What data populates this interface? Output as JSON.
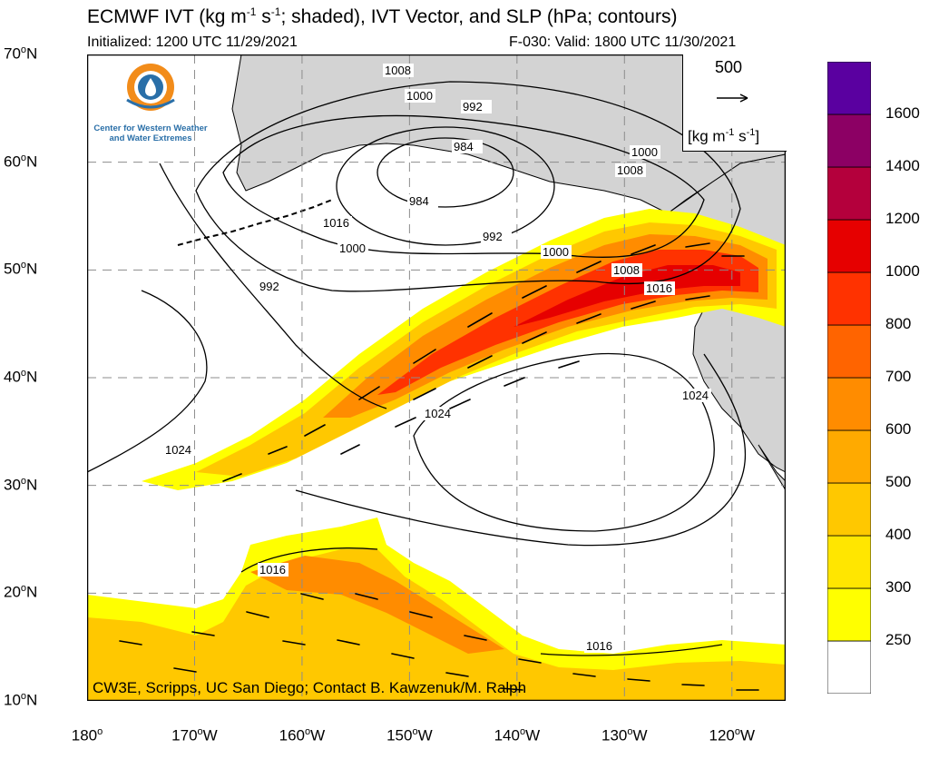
{
  "header": {
    "title_a": "ECMWF IVT (kg m",
    "title_sup1": "-1",
    "title_b": " s",
    "title_sup2": "-1",
    "title_c": "; shaded), IVT Vector, and SLP (hPa; contours)",
    "initialized": "Initialized: 1200 UTC 11/29/2021",
    "valid": "F-030: Valid: 1800 UTC 11/30/2021"
  },
  "logo": {
    "icon": "cw3e-logo-icon",
    "line1": "Center for Western Weather",
    "line2": "and Water Extremes"
  },
  "reference_vector": {
    "value": "500",
    "unit_a": "[kg m",
    "unit_sup1": "-1",
    "unit_b": " s",
    "unit_sup2": "-1",
    "unit_c": "]"
  },
  "credit": "CW3E, Scripps, UC San Diego; Contact B. Kawzenuk/M. Ralph",
  "axes": {
    "lat_ticks": [
      {
        "num": "70",
        "sup": "o",
        "hemi": "N",
        "lat": 70
      },
      {
        "num": "60",
        "sup": "o",
        "hemi": "N",
        "lat": 60
      },
      {
        "num": "50",
        "sup": "o",
        "hemi": "N",
        "lat": 50
      },
      {
        "num": "40",
        "sup": "o",
        "hemi": "N",
        "lat": 40
      },
      {
        "num": "30",
        "sup": "o",
        "hemi": "N",
        "lat": 30
      },
      {
        "num": "20",
        "sup": "o",
        "hemi": "N",
        "lat": 20
      },
      {
        "num": "10",
        "sup": "o",
        "hemi": "N",
        "lat": 10
      }
    ],
    "lon_ticks": [
      {
        "num": "180",
        "sup": "o",
        "hemi": "",
        "lon": -180
      },
      {
        "num": "170",
        "sup": "o",
        "hemi": "W",
        "lon": -170
      },
      {
        "num": "160",
        "sup": "o",
        "hemi": "W",
        "lon": -160
      },
      {
        "num": "150",
        "sup": "o",
        "hemi": "W",
        "lon": -150
      },
      {
        "num": "140",
        "sup": "o",
        "hemi": "W",
        "lon": -140
      },
      {
        "num": "130",
        "sup": "o",
        "hemi": "W",
        "lon": -130
      },
      {
        "num": "120",
        "sup": "o",
        "hemi": "W",
        "lon": -120
      }
    ],
    "lon_range": [
      -180,
      -115
    ],
    "lat_range": [
      10,
      70
    ]
  },
  "colorbar": {
    "levels": [
      "250",
      "300",
      "400",
      "500",
      "600",
      "700",
      "800",
      "1000",
      "1200",
      "1400",
      "1600"
    ],
    "colors": [
      "#ffffff",
      "#ffff00",
      "#ffe600",
      "#ffc800",
      "#ffaa00",
      "#ff8c00",
      "#ff6400",
      "#ff3200",
      "#e60000",
      "#b4003c",
      "#8c0064",
      "#5a00a0"
    ]
  },
  "slp_labels": [
    "1008",
    "1000",
    "992",
    "984",
    "984",
    "992",
    "1000",
    "1008",
    "1016",
    "1000",
    "992",
    "1000",
    "1008",
    "1016",
    "1024",
    "1024",
    "1024",
    "1016",
    "1016"
  ],
  "colors": {
    "land": "#d3d3d3",
    "grid": "#8c8c8c",
    "ivt_250": "#ffff00",
    "ivt_300": "#ffe600",
    "ivt_400": "#ffc800",
    "ivt_500": "#ffaa00",
    "ivt_700": "#ff6400",
    "ivt_800": "#ff3200",
    "ivt_1000": "#e60000"
  }
}
